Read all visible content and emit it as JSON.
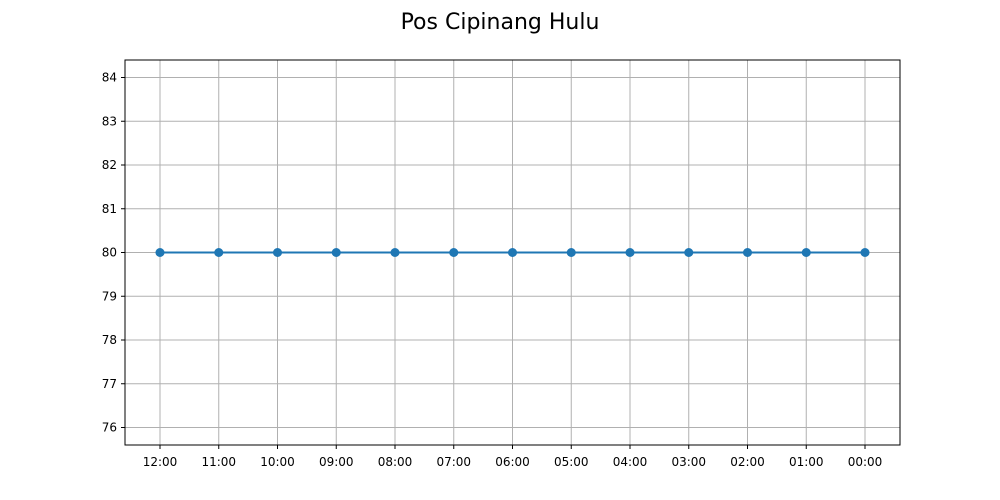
{
  "chart_data": {
    "type": "line",
    "title": "Pos Cipinang Hulu",
    "xlabel": "",
    "ylabel": "",
    "categories": [
      "12:00",
      "11:00",
      "10:00",
      "09:00",
      "08:00",
      "07:00",
      "06:00",
      "05:00",
      "04:00",
      "03:00",
      "02:00",
      "01:00",
      "00:00"
    ],
    "series": [
      {
        "values": [
          80,
          80,
          80,
          80,
          80,
          80,
          80,
          80,
          80,
          80,
          80,
          80,
          80
        ],
        "color": "#1f77b4",
        "marker": "circle"
      }
    ],
    "ylim": [
      75.6,
      84.4
    ],
    "yticks": [
      76,
      77,
      78,
      79,
      80,
      81,
      82,
      83,
      84
    ],
    "grid": true,
    "legend": "none"
  }
}
